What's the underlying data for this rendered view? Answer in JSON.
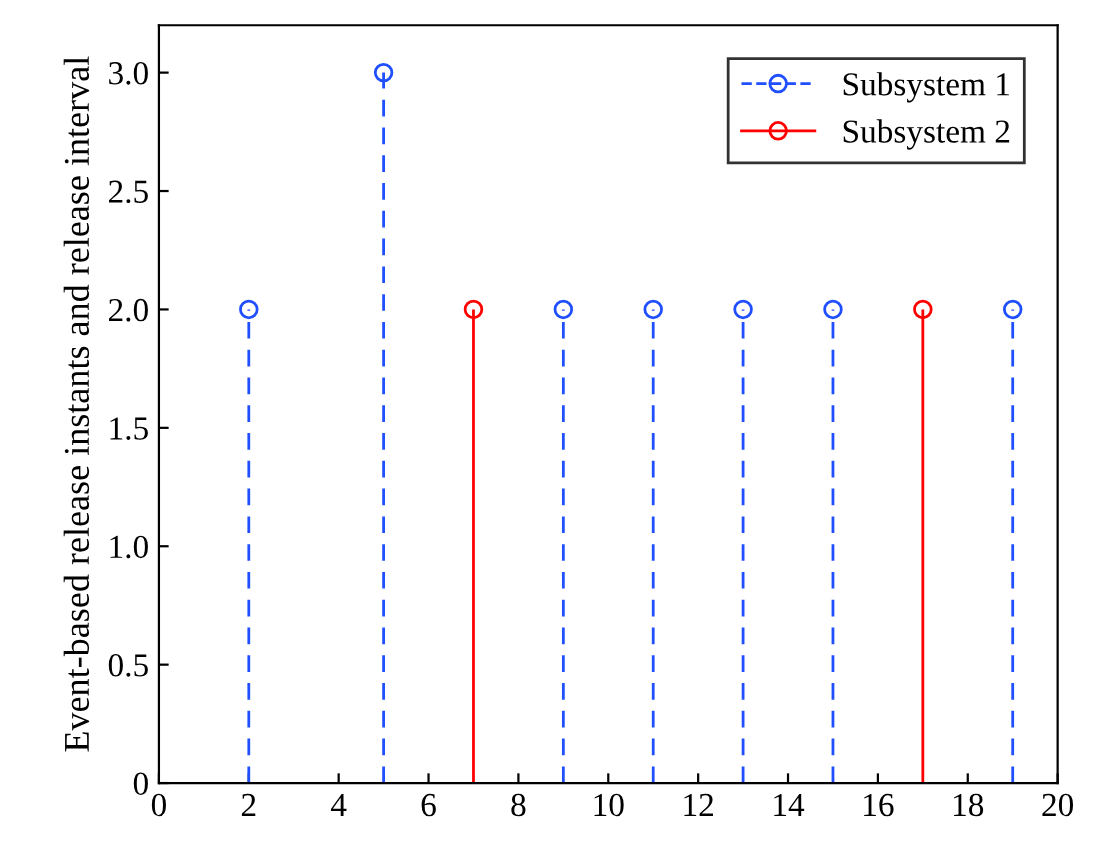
{
  "chart_data": {
    "type": "lollipop",
    "ylabel": "Event-based release instants and release interval",
    "series": [
      {
        "name": "Subsystem 1",
        "color": "#1f4fff",
        "line_style": "dashed",
        "x": [
          2,
          5,
          9,
          11,
          13,
          15,
          19
        ],
        "values": [
          2,
          3,
          2,
          2,
          2,
          2,
          2
        ]
      },
      {
        "name": "Subsystem 2",
        "color": "#ff0000",
        "line_style": "solid",
        "x": [
          7,
          17
        ],
        "values": [
          2,
          2
        ]
      }
    ],
    "marker": "circle",
    "xlim": [
      0,
      20
    ],
    "xticks": [
      0,
      2,
      4,
      6,
      8,
      10,
      12,
      14,
      16,
      18,
      20
    ],
    "ylim": [
      0,
      3.2
    ],
    "yticks": [
      0,
      0.5,
      {
        "value": 1,
        "label": "1.0"
      },
      1.5,
      {
        "value": 2,
        "label": "2.0"
      },
      2.5,
      {
        "value": 3,
        "label": "3.0"
      }
    ],
    "grid": false,
    "legend": "top right"
  }
}
